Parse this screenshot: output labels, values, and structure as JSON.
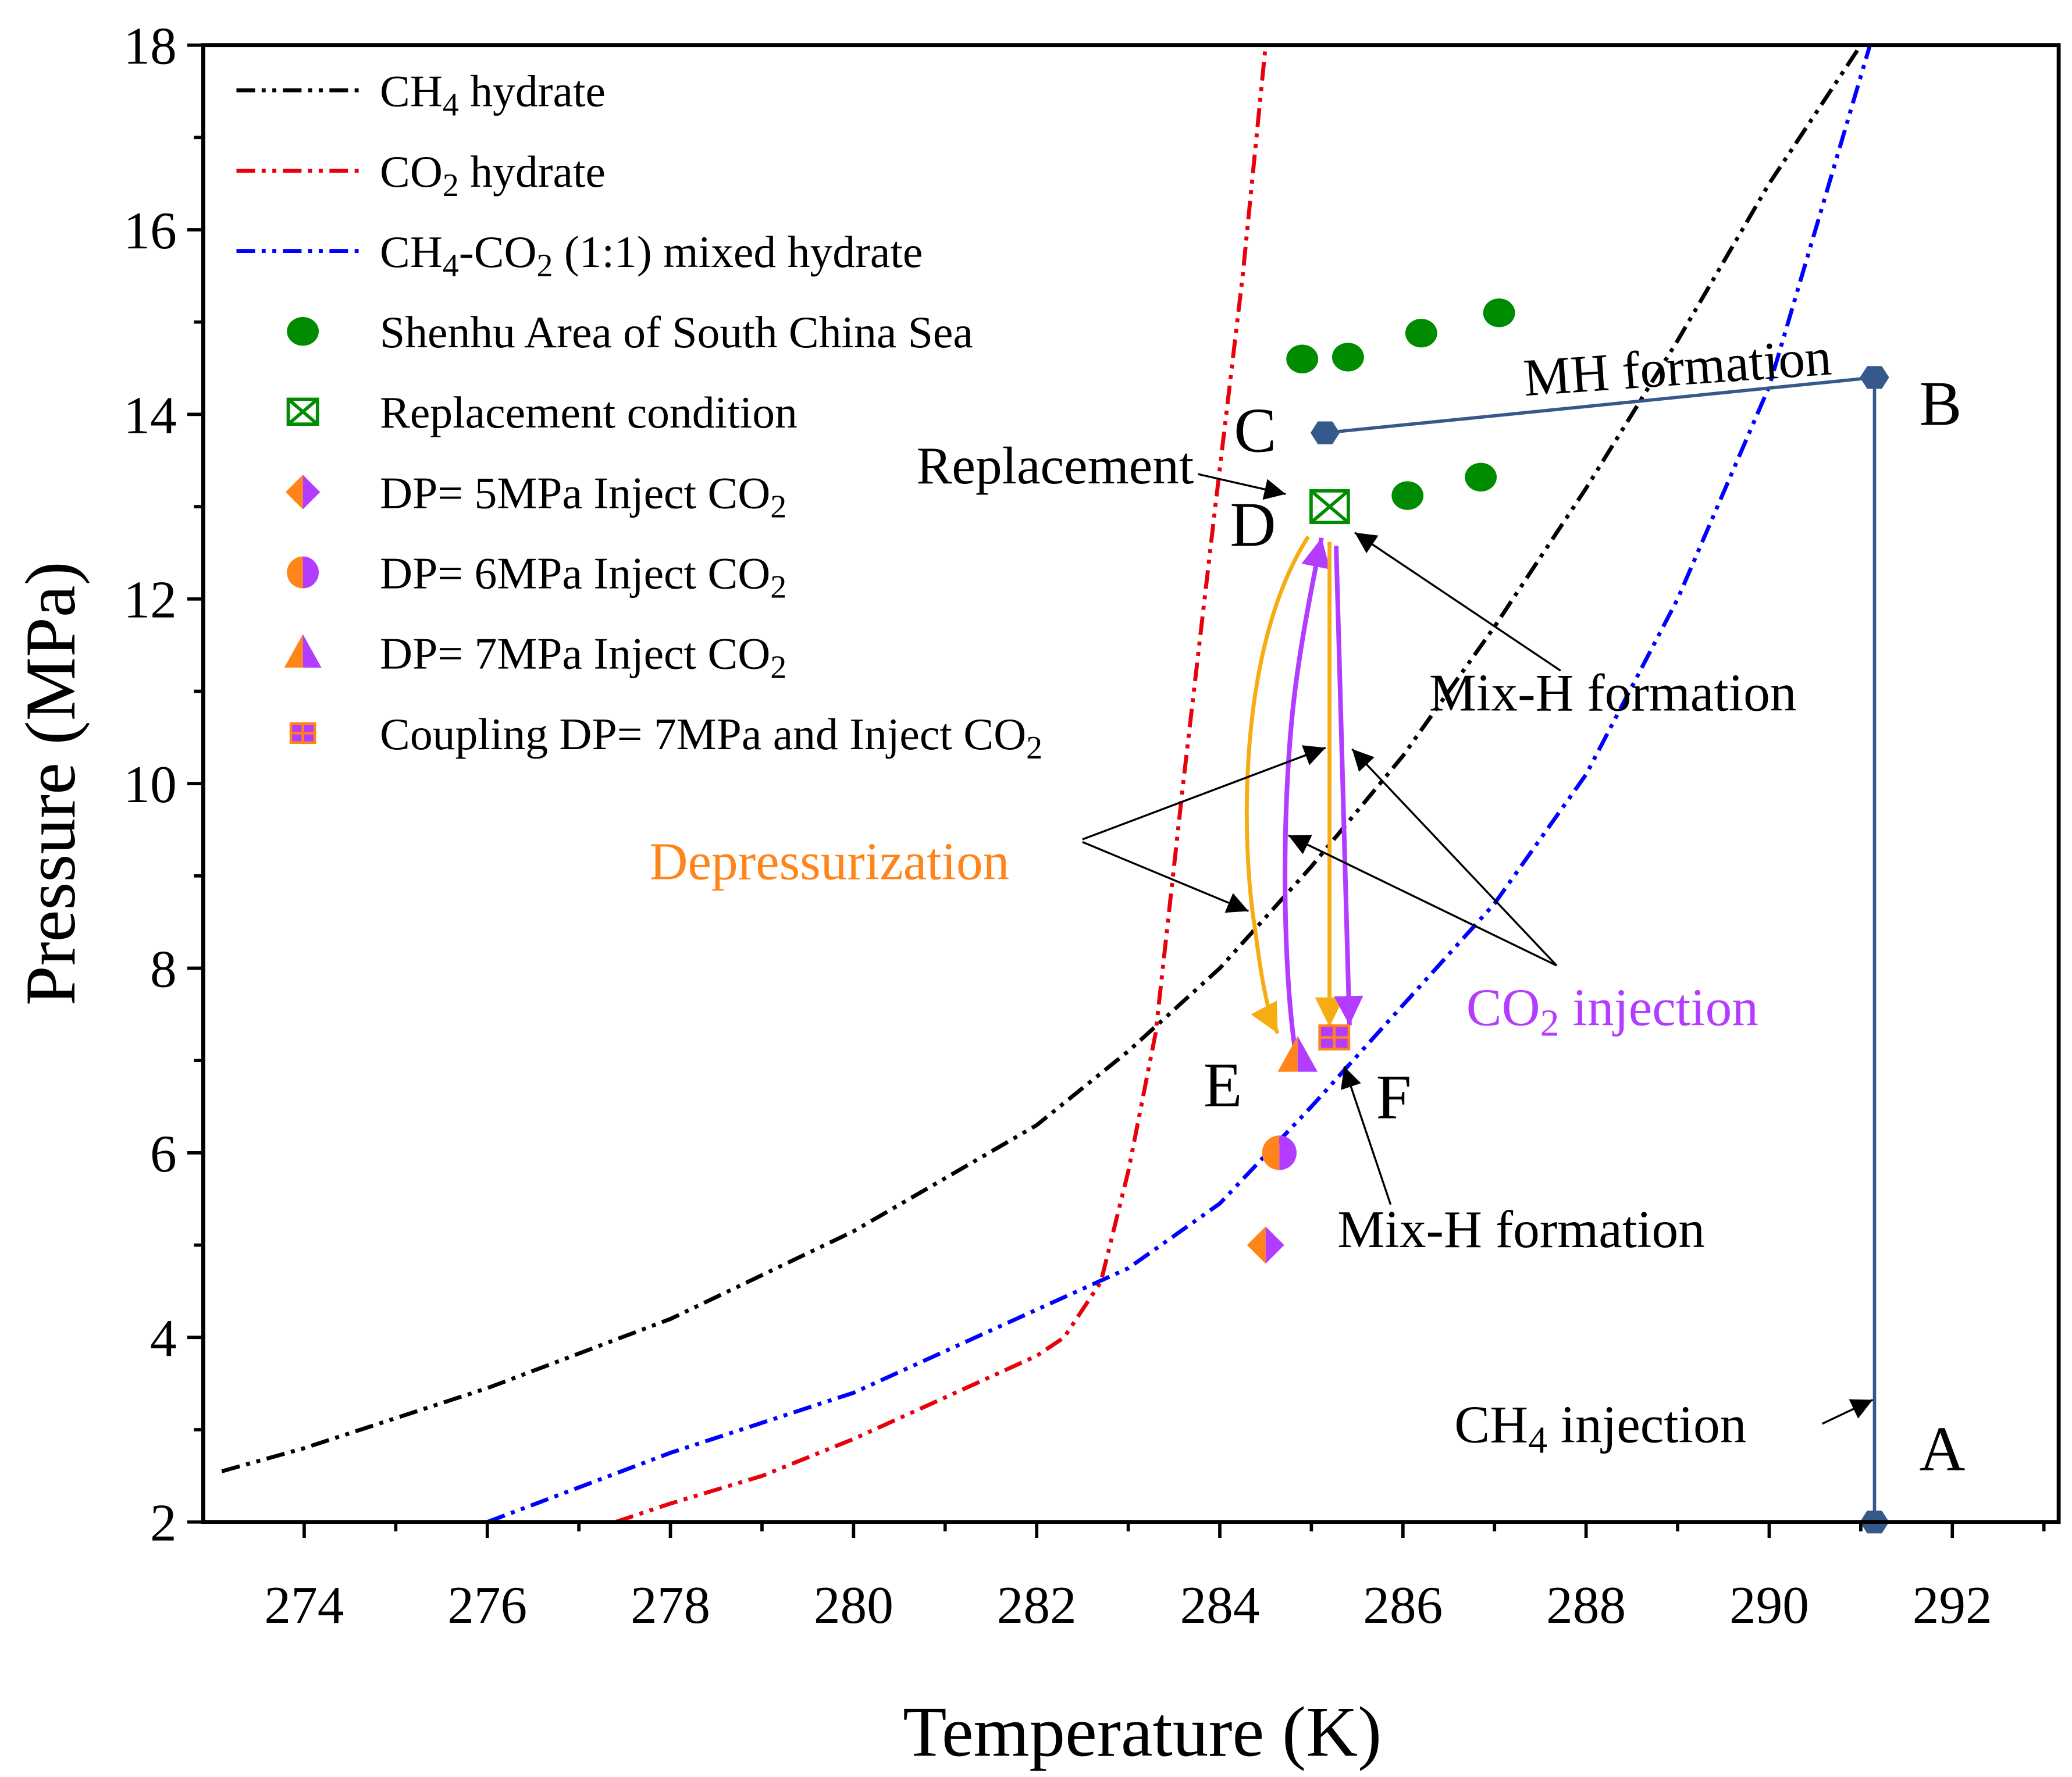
{
  "chart_data": {
    "type": "line",
    "title": "",
    "xlabel": "Temperature (K)",
    "ylabel": "Pressure (MPa)",
    "xlim": [
      273.1,
      293.2
    ],
    "ylim": [
      2,
      18
    ],
    "xticks": [
      274,
      276,
      278,
      280,
      282,
      284,
      286,
      288,
      290,
      292
    ],
    "yticks": [
      2,
      4,
      6,
      8,
      10,
      12,
      14,
      16,
      18
    ],
    "grid": false,
    "legend_position": "top-left",
    "series": [
      {
        "name": "CH4 hydrate",
        "label_parts": [
          "CH",
          "4",
          " hydrate"
        ],
        "kind": "line",
        "color": "#000000",
        "points": [
          [
            273.1,
            2.55
          ],
          [
            274,
            2.8
          ],
          [
            276,
            3.45
          ],
          [
            278,
            4.2
          ],
          [
            280,
            5.15
          ],
          [
            282,
            6.3
          ],
          [
            283,
            7.1
          ],
          [
            284,
            8.0
          ],
          [
            285,
            9.1
          ],
          [
            286,
            10.3
          ],
          [
            287,
            11.7
          ],
          [
            288,
            13.2
          ],
          [
            289,
            14.8
          ],
          [
            290,
            16.5
          ],
          [
            291,
            18.0
          ]
        ]
      },
      {
        "name": "CO2 hydrate",
        "label_parts": [
          "CO",
          "2",
          " hydrate"
        ],
        "kind": "line",
        "color": "#e8000b",
        "points": [
          [
            277.4,
            2.0
          ],
          [
            278,
            2.2
          ],
          [
            279,
            2.5
          ],
          [
            280,
            2.9
          ],
          [
            281,
            3.35
          ],
          [
            282,
            3.8
          ],
          [
            282.3,
            4.0
          ],
          [
            282.7,
            4.6
          ],
          [
            283.0,
            5.8
          ],
          [
            283.3,
            7.3
          ],
          [
            283.6,
            10.0
          ],
          [
            283.95,
            13.0
          ],
          [
            284.25,
            15.5
          ],
          [
            284.5,
            18.0
          ]
        ]
      },
      {
        "name": "CH4-CO2 (1:1) mixed hydrate",
        "label_parts": [
          "CH",
          "4",
          "-CO",
          "2",
          " (1:1) mixed hydrate"
        ],
        "kind": "line",
        "color": "#0000ff",
        "points": [
          [
            276,
            2.0
          ],
          [
            278,
            2.75
          ],
          [
            280,
            3.4
          ],
          [
            282,
            4.3
          ],
          [
            283,
            4.75
          ],
          [
            284,
            5.45
          ],
          [
            285,
            6.5
          ],
          [
            286,
            7.6
          ],
          [
            287,
            8.7
          ],
          [
            288,
            10.1
          ],
          [
            289,
            12.0
          ],
          [
            290,
            14.3
          ],
          [
            291.1,
            18.0
          ]
        ]
      },
      {
        "name": "Shenhu Area of South China Sea",
        "label_parts": [
          "Shenhu Area of South China Sea"
        ],
        "kind": "scatter",
        "marker": "circle",
        "color": "#008c00",
        "points": [
          [
            284.9,
            14.6
          ],
          [
            285.4,
            14.62
          ],
          [
            286.2,
            14.88
          ],
          [
            287.05,
            15.1
          ],
          [
            286.05,
            13.12
          ],
          [
            286.85,
            13.32
          ]
        ]
      },
      {
        "name": "Replacement condition",
        "label_parts": [
          "Replacement condition"
        ],
        "kind": "scatter",
        "marker": "boxx",
        "color": "#008c00",
        "points": [
          [
            285.2,
            13.0
          ]
        ]
      },
      {
        "name": "DP= 5MPa Inject CO2",
        "label_parts": [
          "DP= 5MPa Inject CO",
          "2"
        ],
        "kind": "scatter",
        "marker": "diamond",
        "color": "#ff8419",
        "points": [
          [
            284.5,
            5.0
          ]
        ]
      },
      {
        "name": "DP= 6MPa Inject CO2",
        "label_parts": [
          "DP= 6MPa Inject CO",
          "2"
        ],
        "kind": "scatter",
        "marker": "halfcircle",
        "color": "#ff8419",
        "points": [
          [
            284.65,
            6.0
          ]
        ]
      },
      {
        "name": "DP= 7MPa Inject CO2",
        "label_parts": [
          "DP= 7MPa Inject CO",
          "2"
        ],
        "kind": "scatter",
        "marker": "triangle",
        "color": "#ff8419",
        "points": [
          [
            284.85,
            7.05
          ]
        ]
      },
      {
        "name": "Coupling DP= 7MPa and Inject CO2",
        "label_parts": [
          "Coupling DP= 7MPa and Inject CO",
          "2"
        ],
        "kind": "scatter",
        "marker": "gridsquare",
        "color": "#b23cff",
        "points": [
          [
            285.25,
            7.25
          ]
        ]
      }
    ],
    "path_points": {
      "A": [
        291.15,
        2.0
      ],
      "B": [
        291.15,
        14.4
      ],
      "C": [
        285.15,
        13.8
      ]
    },
    "path_color": "#36598c",
    "colors": {
      "orange": "#ff8419",
      "purple": "#b23cff",
      "arrow_orange": "#f7ac14"
    },
    "annotations": {
      "A": "A",
      "B": "B",
      "C": "C",
      "D": "D",
      "E": "E",
      "F": "F",
      "mh_formation": "MH formation",
      "replacement": "Replacement",
      "mixh_formation_upper": "Mix-H formation",
      "mixh_formation_lower": "Mix-H formation",
      "depressurization": "Depressurization",
      "co2_injection": [
        "CO",
        "2",
        " injection"
      ],
      "ch4_injection": [
        "CH",
        "4",
        " injection"
      ]
    }
  }
}
